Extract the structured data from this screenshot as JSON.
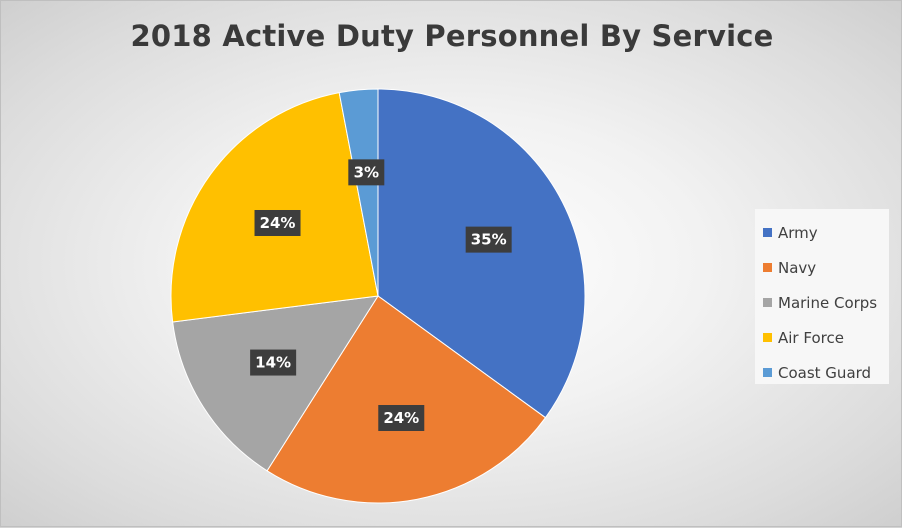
{
  "chart_data": {
    "type": "pie",
    "title": "2018 Active Duty Personnel By Service",
    "categories": [
      "Army",
      "Navy",
      "Marine Corps",
      "Air Force",
      "Coast Guard"
    ],
    "values": [
      35,
      24,
      14,
      24,
      3
    ],
    "value_labels": [
      "35%",
      "24%",
      "14%",
      "24%",
      "3%"
    ],
    "colors": [
      "#4472C4",
      "#ED7D31",
      "#A5A5A5",
      "#FFC000",
      "#5B9BD5"
    ],
    "legend_position": "right",
    "start_angle": "12 o'clock, clockwise"
  }
}
